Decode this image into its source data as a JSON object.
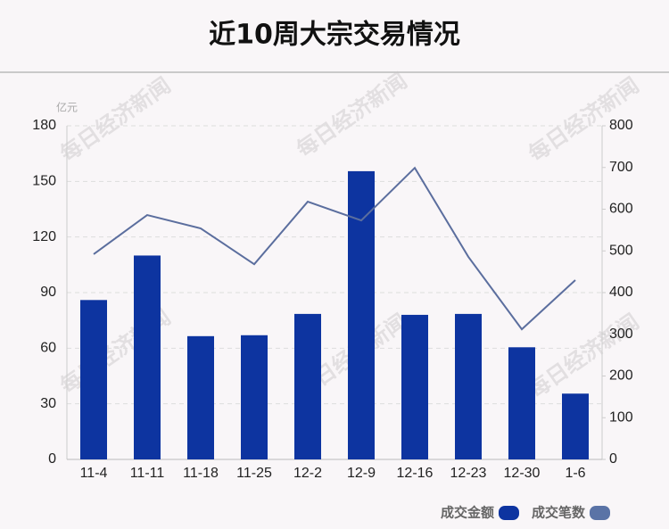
{
  "chart_data": {
    "type": "bar",
    "title": "近10周大宗交易情况",
    "y_unit": "亿元",
    "watermark": "每日经济新闻",
    "categories": [
      "11-4",
      "11-11",
      "11-18",
      "11-25",
      "12-2",
      "12-9",
      "12-16",
      "12-23",
      "12-30",
      "1-6"
    ],
    "series": [
      {
        "name": "成交金额",
        "type": "bar",
        "color": "#0d34a0",
        "values": [
          86,
          110,
          66.5,
          67,
          78.5,
          155.5,
          78,
          78.5,
          60.5,
          35.5
        ]
      },
      {
        "name": "成交笔数",
        "type": "line",
        "axis": "y2",
        "color": "#5b6e9e",
        "legend_color": "#5a73a6",
        "values": [
          492,
          586,
          554,
          468,
          618,
          573,
          699,
          486,
          312,
          430
        ]
      }
    ],
    "ylim": [
      0,
      180
    ],
    "yticks": [
      0,
      30,
      60,
      90,
      120,
      150,
      180
    ],
    "y2lim": [
      0,
      800
    ],
    "y2ticks": [
      0,
      100,
      200,
      300,
      400,
      500,
      600,
      700,
      800
    ],
    "grid": true,
    "legend": "bottom-right"
  }
}
